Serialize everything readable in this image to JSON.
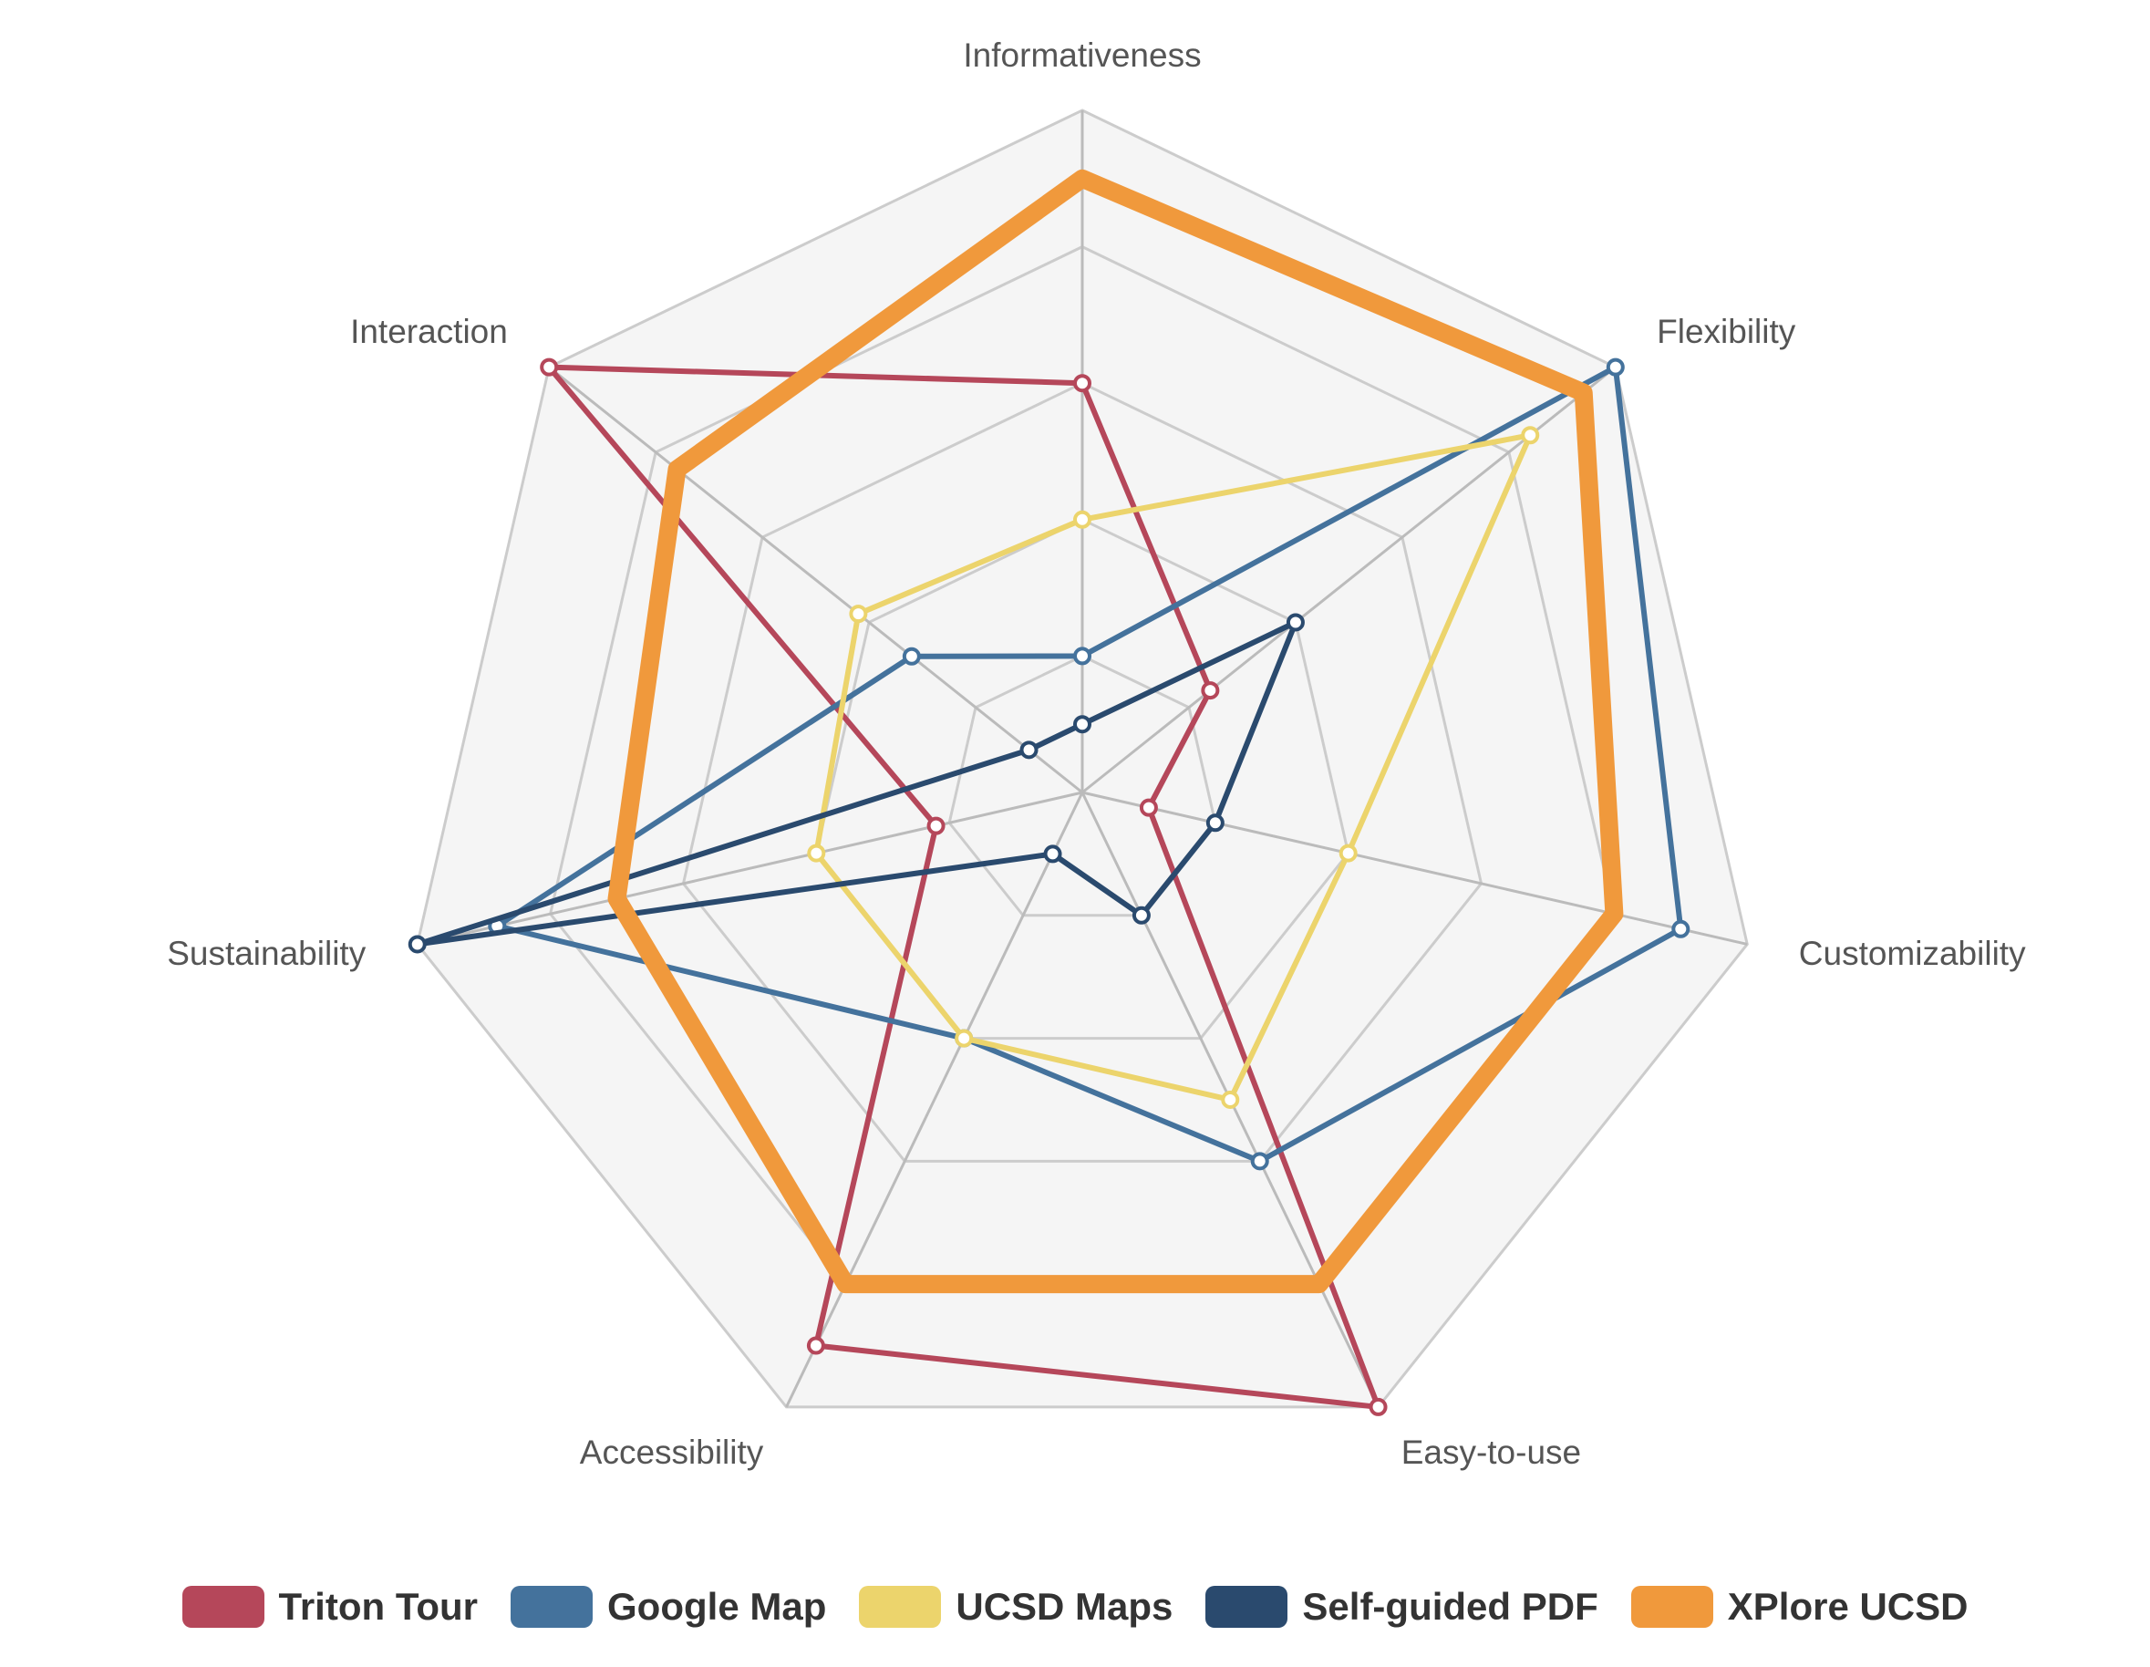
{
  "chart_data": {
    "type": "radar",
    "axes": [
      "Informativeness",
      "Flexibility",
      "Customizability",
      "Easy-to-use",
      "Accessibility",
      "Sustainability",
      "Interaction"
    ],
    "rmax": 5,
    "grid_levels": 5,
    "series": [
      {
        "name": "Triton Tour",
        "color": "#b5475a",
        "values": [
          3,
          1.2,
          0.5,
          5,
          4.5,
          1.1,
          5
        ]
      },
      {
        "name": "Google Map",
        "color": "#44729c",
        "values": [
          1,
          5,
          4.5,
          3,
          2,
          4.4,
          1.6
        ]
      },
      {
        "name": "UCSD Maps",
        "color": "#ecd46c",
        "values": [
          2,
          4.2,
          2,
          2.5,
          2,
          2,
          2.1
        ]
      },
      {
        "name": "Self-guided PDF",
        "color": "#2a4a6e",
        "values": [
          0.5,
          2,
          1,
          1,
          0.5,
          5,
          0.5
        ]
      },
      {
        "name": "XPlore UCSD",
        "color": "#f0993c",
        "values": [
          4.5,
          4.7,
          4,
          4,
          4,
          3.5,
          3.8
        ]
      }
    ],
    "legend_position": "bottom",
    "grid": true
  }
}
